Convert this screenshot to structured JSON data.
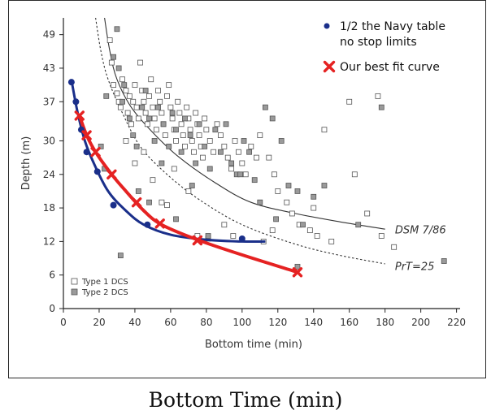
{
  "caption": "Bottom Time (min)",
  "chart_data": {
    "type": "scatter",
    "xlabel": "Bottom time (min)",
    "ylabel": "Depth (m)",
    "xlim": [
      0,
      222
    ],
    "ylim": [
      0,
      52
    ],
    "x_ticks": [
      0,
      20,
      40,
      60,
      80,
      100,
      120,
      140,
      160,
      180,
      200,
      220
    ],
    "y_ticks": [
      0,
      6,
      12,
      18,
      24,
      30,
      37,
      43,
      49
    ],
    "grid": false,
    "legend_top_right": [
      {
        "label": "1/2 the Navy table",
        "label2": "no stop limits",
        "color": "#1a2f8a",
        "marker": "dot"
      },
      {
        "label": "Our best fit curve",
        "color": "#e52222",
        "marker": "x"
      }
    ],
    "legend_bottom_left": [
      {
        "label": "Type 1 DCS",
        "fill": "#ffffff"
      },
      {
        "label": "Type 2 DCS",
        "fill": "#9a9a9a"
      }
    ],
    "annotations": [
      {
        "text": "DSM 7/86",
        "x": 181,
        "y": 14
      },
      {
        "text": "PrT=25",
        "x": 181,
        "y": 7.5
      }
    ],
    "colors": {
      "navy": "#1a2f8a",
      "best_fit": "#e52222",
      "reference": "#333333"
    },
    "series": [
      {
        "name": "1/2 the Navy table no stop limits",
        "kind": "points",
        "points": [
          [
            4.5,
            40.5
          ],
          [
            7,
            37
          ],
          [
            10,
            32
          ],
          [
            13,
            28
          ],
          [
            19,
            24.5
          ],
          [
            28,
            18.5
          ],
          [
            47,
            15
          ],
          [
            100,
            12.5
          ]
        ]
      },
      {
        "name": "Navy fit curve",
        "kind": "curve",
        "points": [
          [
            5,
            40
          ],
          [
            8,
            35
          ],
          [
            12,
            30
          ],
          [
            17,
            26
          ],
          [
            25,
            21
          ],
          [
            35,
            17.5
          ],
          [
            45,
            15
          ],
          [
            60,
            13.2
          ],
          [
            80,
            12.3
          ],
          [
            100,
            12
          ],
          [
            113,
            12
          ]
        ]
      },
      {
        "name": "Our best fit curve",
        "kind": "points",
        "points": [
          [
            9,
            34.5
          ],
          [
            13,
            31
          ],
          [
            18,
            28
          ],
          [
            27,
            24
          ],
          [
            41,
            19
          ],
          [
            54,
            15.2
          ],
          [
            75,
            12.2
          ],
          [
            131,
            6.5
          ]
        ]
      },
      {
        "name": "Our best fit curve line",
        "kind": "curve",
        "points": [
          [
            9,
            34.5
          ],
          [
            13,
            31
          ],
          [
            18,
            28
          ],
          [
            27,
            24
          ],
          [
            35,
            21
          ],
          [
            45,
            17.5
          ],
          [
            55,
            15
          ],
          [
            75,
            12.3
          ],
          [
            100,
            9.6
          ],
          [
            131,
            6.5
          ]
        ]
      },
      {
        "name": "DSM 7/86",
        "kind": "curve",
        "points": [
          [
            23,
            52
          ],
          [
            26,
            46
          ],
          [
            30,
            41
          ],
          [
            38,
            36
          ],
          [
            50,
            31.5
          ],
          [
            65,
            27
          ],
          [
            85,
            22.5
          ],
          [
            105,
            19
          ],
          [
            130,
            17
          ],
          [
            155,
            15.5
          ],
          [
            180,
            14.2
          ]
        ]
      },
      {
        "name": "PrT=25",
        "kind": "curve",
        "points": [
          [
            18,
            52
          ],
          [
            21,
            46
          ],
          [
            25,
            41
          ],
          [
            33,
            35
          ],
          [
            43,
            29
          ],
          [
            58,
            24
          ],
          [
            76,
            19.5
          ],
          [
            100,
            15
          ],
          [
            130,
            11.5
          ],
          [
            155,
            9.5
          ],
          [
            180,
            8
          ]
        ]
      },
      {
        "name": "Type 1 DCS",
        "kind": "scatter",
        "points": [
          [
            26,
            48
          ],
          [
            27,
            44
          ],
          [
            28,
            40
          ],
          [
            30,
            38.5
          ],
          [
            31,
            37
          ],
          [
            32,
            36
          ],
          [
            33,
            41
          ],
          [
            35,
            39
          ],
          [
            36,
            35
          ],
          [
            37,
            38
          ],
          [
            38,
            33
          ],
          [
            39,
            37
          ],
          [
            40,
            40
          ],
          [
            41,
            36
          ],
          [
            42,
            34
          ],
          [
            43,
            44
          ],
          [
            44,
            39
          ],
          [
            45,
            37
          ],
          [
            46,
            35
          ],
          [
            47,
            33
          ],
          [
            48,
            38
          ],
          [
            49,
            41
          ],
          [
            50,
            36
          ],
          [
            51,
            34
          ],
          [
            52,
            32
          ],
          [
            53,
            39
          ],
          [
            54,
            37
          ],
          [
            55,
            35
          ],
          [
            56,
            33
          ],
          [
            57,
            31
          ],
          [
            58,
            38
          ],
          [
            59,
            40
          ],
          [
            60,
            36
          ],
          [
            61,
            34
          ],
          [
            62,
            32
          ],
          [
            63,
            30
          ],
          [
            64,
            37
          ],
          [
            65,
            35
          ],
          [
            66,
            33
          ],
          [
            67,
            31
          ],
          [
            68,
            29
          ],
          [
            69,
            36
          ],
          [
            70,
            34
          ],
          [
            71,
            32
          ],
          [
            72,
            30
          ],
          [
            73,
            28
          ],
          [
            74,
            35
          ],
          [
            75,
            33
          ],
          [
            76,
            31
          ],
          [
            77,
            29
          ],
          [
            78,
            27
          ],
          [
            79,
            34
          ],
          [
            80,
            32
          ],
          [
            82,
            30
          ],
          [
            84,
            28
          ],
          [
            86,
            33
          ],
          [
            88,
            31
          ],
          [
            90,
            29
          ],
          [
            92,
            27
          ],
          [
            94,
            25
          ],
          [
            96,
            30
          ],
          [
            98,
            28
          ],
          [
            100,
            26
          ],
          [
            102,
            24
          ],
          [
            105,
            29
          ],
          [
            108,
            27
          ],
          [
            110,
            31
          ],
          [
            115,
            27
          ],
          [
            118,
            24
          ],
          [
            120,
            21
          ],
          [
            125,
            19
          ],
          [
            128,
            17
          ],
          [
            132,
            15
          ],
          [
            138,
            14
          ],
          [
            140,
            18
          ],
          [
            142,
            13
          ],
          [
            146,
            32
          ],
          [
            150,
            12
          ],
          [
            160,
            37
          ],
          [
            163,
            24
          ],
          [
            170,
            17
          ],
          [
            176,
            38
          ],
          [
            178,
            13
          ],
          [
            185,
            11
          ],
          [
            35,
            30
          ],
          [
            40,
            26
          ],
          [
            45,
            28
          ],
          [
            50,
            23
          ],
          [
            55,
            19
          ],
          [
            58,
            18.5
          ],
          [
            62,
            25
          ],
          [
            70,
            21
          ],
          [
            75,
            13
          ],
          [
            81,
            12.5
          ],
          [
            90,
            15
          ],
          [
            95,
            13
          ],
          [
            112,
            12
          ],
          [
            117,
            14
          ]
        ]
      },
      {
        "name": "Type 2 DCS",
        "kind": "scatter",
        "points": [
          [
            30,
            50
          ],
          [
            28,
            45
          ],
          [
            31,
            43
          ],
          [
            33,
            37
          ],
          [
            34,
            40
          ],
          [
            37,
            34
          ],
          [
            39,
            31
          ],
          [
            41,
            29
          ],
          [
            44,
            36
          ],
          [
            46,
            39
          ],
          [
            48,
            34
          ],
          [
            51,
            30
          ],
          [
            53,
            36
          ],
          [
            56,
            33
          ],
          [
            59,
            29
          ],
          [
            61,
            35
          ],
          [
            63,
            32
          ],
          [
            66,
            28
          ],
          [
            68,
            34
          ],
          [
            71,
            31
          ],
          [
            74,
            26
          ],
          [
            76,
            33
          ],
          [
            79,
            29
          ],
          [
            82,
            25
          ],
          [
            85,
            32
          ],
          [
            88,
            28
          ],
          [
            91,
            33
          ],
          [
            94,
            26
          ],
          [
            97,
            24
          ],
          [
            101,
            30
          ],
          [
            104,
            28
          ],
          [
            107,
            23
          ],
          [
            113,
            36
          ],
          [
            117,
            34
          ],
          [
            122,
            30
          ],
          [
            126,
            22
          ],
          [
            131,
            21
          ],
          [
            134,
            15
          ],
          [
            140,
            20
          ],
          [
            146,
            22
          ],
          [
            165,
            15
          ],
          [
            178,
            36
          ],
          [
            213,
            8.5
          ],
          [
            32,
            9.5
          ],
          [
            42,
            21
          ],
          [
            48,
            19
          ],
          [
            55,
            26
          ],
          [
            63,
            16
          ],
          [
            72,
            22
          ],
          [
            81,
            13
          ],
          [
            99,
            24
          ],
          [
            110,
            19
          ],
          [
            119,
            16
          ],
          [
            131,
            7.5
          ],
          [
            23,
            25
          ],
          [
            21,
            29
          ],
          [
            24,
            38
          ]
        ]
      }
    ]
  }
}
